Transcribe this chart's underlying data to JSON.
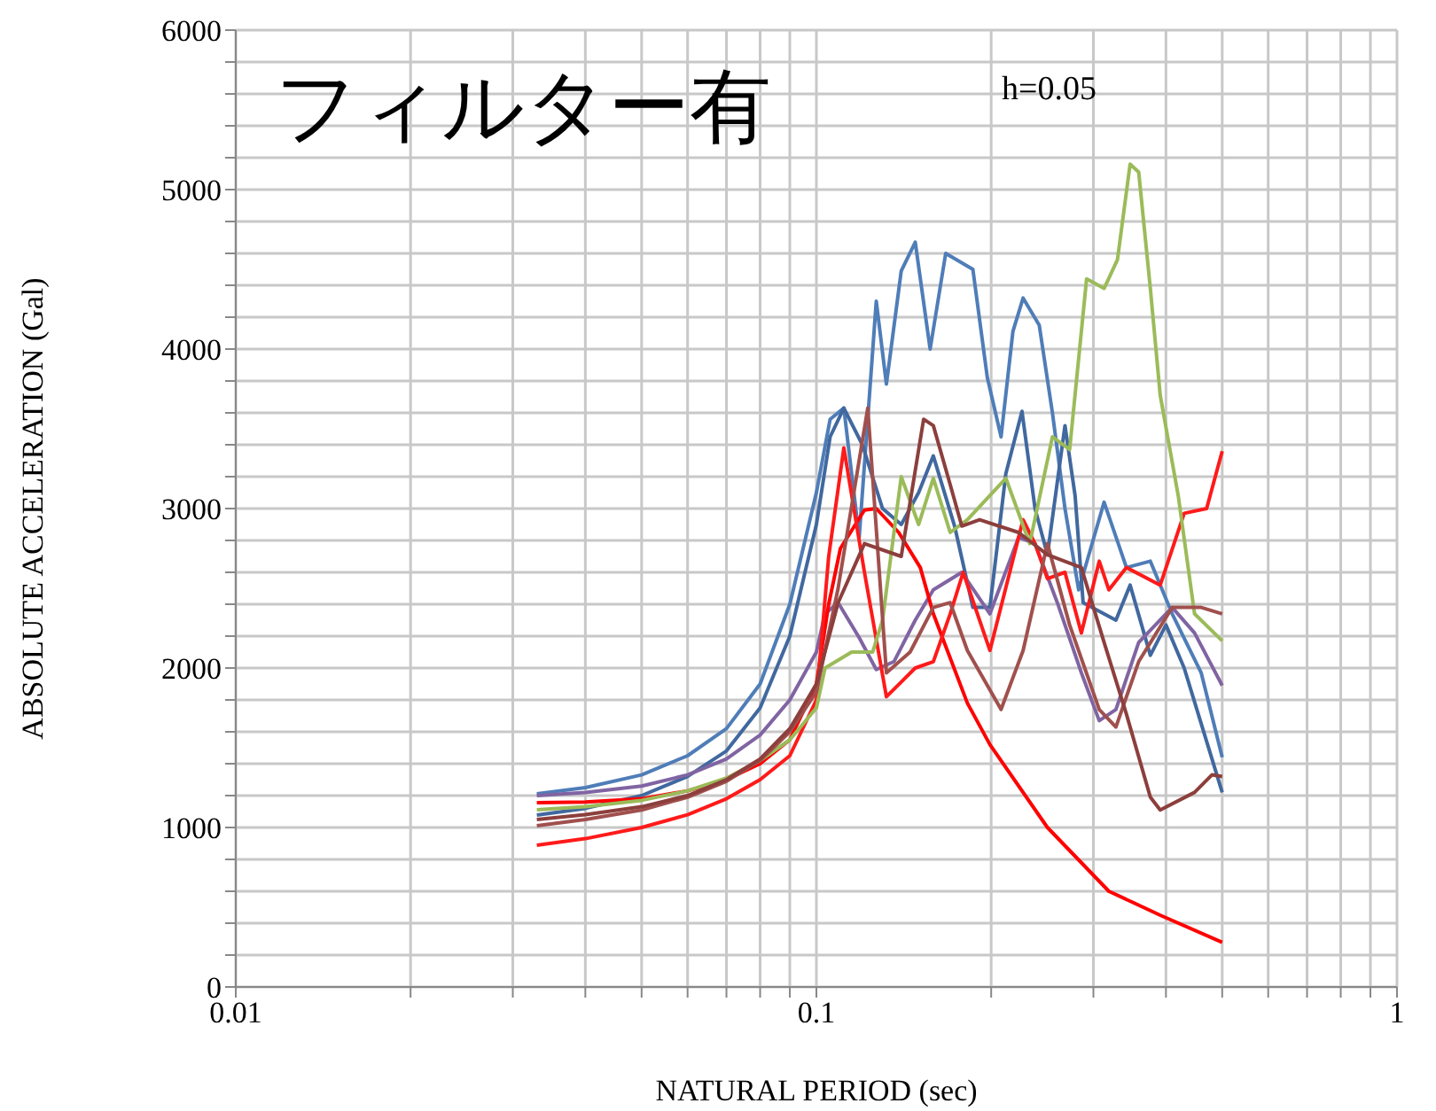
{
  "chart_data": {
    "type": "line",
    "xlabel": "NATURAL PERIOD  (sec)",
    "ylabel": "ABSOLUTE  ACCELERATION  (Gal)",
    "annotations": [
      "フィルター有",
      "h=0.05"
    ],
    "log": "x",
    "grid": true,
    "legend": false,
    "marker": "none",
    "line_style": "solid",
    "xlim": [
      0.01,
      1
    ],
    "xticks": [
      0.01,
      {
        "value": 0.02,
        "label": null
      },
      {
        "value": 0.03,
        "label": null
      },
      {
        "value": 0.04,
        "label": null
      },
      {
        "value": 0.05,
        "label": null
      },
      {
        "value": 0.06,
        "label": null
      },
      {
        "value": 0.07,
        "label": null
      },
      {
        "value": 0.08,
        "label": null
      },
      {
        "value": 0.09,
        "label": null
      },
      0.1,
      {
        "value": 0.2,
        "label": null
      },
      {
        "value": 0.3,
        "label": null
      },
      {
        "value": 0.4,
        "label": null
      },
      {
        "value": 0.5,
        "label": null
      },
      {
        "value": 0.6,
        "label": null
      },
      {
        "value": 0.7,
        "label": null
      },
      {
        "value": 0.8,
        "label": null
      },
      {
        "value": 0.9,
        "label": null
      },
      1
    ],
    "ylim": [
      0,
      6000
    ],
    "yticks": [
      0,
      {
        "value": 200,
        "label": null
      },
      {
        "value": 400,
        "label": null
      },
      {
        "value": 600,
        "label": null
      },
      {
        "value": 800,
        "label": null
      },
      1000,
      {
        "value": 1200,
        "label": null
      },
      {
        "value": 1400,
        "label": null
      },
      {
        "value": 1600,
        "label": null
      },
      {
        "value": 1800,
        "label": null
      },
      2000,
      {
        "value": 2200,
        "label": null
      },
      {
        "value": 2400,
        "label": null
      },
      {
        "value": 2600,
        "label": null
      },
      {
        "value": 2800,
        "label": null
      },
      3000,
      {
        "value": 3200,
        "label": null
      },
      {
        "value": 3400,
        "label": null
      },
      {
        "value": 3600,
        "label": null
      },
      {
        "value": 3800,
        "label": null
      },
      4000,
      {
        "value": 4200,
        "label": null
      },
      {
        "value": 4400,
        "label": null
      },
      {
        "value": 4600,
        "label": null
      },
      {
        "value": 4800,
        "label": null
      },
      5000,
      {
        "value": 5200,
        "label": null
      },
      {
        "value": 5400,
        "label": null
      },
      {
        "value": 5600,
        "label": null
      },
      {
        "value": 5800,
        "label": null
      },
      6000
    ],
    "series": [
      {
        "color": "#4f7db8",
        "x": [
          0.033,
          0.04,
          0.05,
          0.06,
          0.07,
          0.08,
          0.09,
          0.1,
          0.1056,
          0.1115,
          0.1185,
          0.1268,
          0.132,
          0.14,
          0.148,
          0.157,
          0.167,
          0.186,
          0.197,
          0.208,
          0.218,
          0.227,
          0.242,
          0.255,
          0.268,
          0.283,
          0.313,
          0.342,
          0.376,
          0.41,
          0.46,
          0.5
        ],
        "values": [
          1211,
          1250,
          1330,
          1450,
          1620,
          1900,
          2400,
          3100,
          3560,
          3630,
          2820,
          4300,
          3780,
          4490,
          4670,
          4000,
          4600,
          4500,
          3820,
          3450,
          4110,
          4320,
          4150,
          3600,
          3000,
          2490,
          3040,
          2630,
          2670,
          2340,
          1970,
          1440
        ]
      },
      {
        "color": "#41689f",
        "x": [
          0.033,
          0.04,
          0.05,
          0.06,
          0.07,
          0.08,
          0.09,
          0.1,
          0.1056,
          0.1115,
          0.12,
          0.13,
          0.14,
          0.15,
          0.159,
          0.173,
          0.186,
          0.199,
          0.212,
          0.226,
          0.238,
          0.25,
          0.268,
          0.279,
          0.288,
          0.328,
          0.347,
          0.376,
          0.4,
          0.43,
          0.5
        ],
        "values": [
          1078,
          1120,
          1200,
          1320,
          1480,
          1750,
          2200,
          2900,
          3450,
          3630,
          3400,
          3000,
          2900,
          3100,
          3330,
          2890,
          2380,
          2380,
          3220,
          3610,
          3000,
          2710,
          3520,
          3080,
          2410,
          2300,
          2520,
          2080,
          2270,
          2000,
          1220
        ]
      },
      {
        "color": "#8064a2",
        "x": [
          0.033,
          0.04,
          0.05,
          0.06,
          0.07,
          0.08,
          0.09,
          0.1,
          0.1035,
          0.109,
          0.1185,
          0.1268,
          0.136,
          0.148,
          0.159,
          0.178,
          0.199,
          0.223,
          0.238,
          0.26,
          0.286,
          0.307,
          0.328,
          0.359,
          0.41,
          0.448,
          0.5
        ],
        "values": [
          1200,
          1220,
          1260,
          1330,
          1430,
          1580,
          1800,
          2100,
          2340,
          2410,
          2190,
          1990,
          2040,
          2300,
          2490,
          2600,
          2340,
          2820,
          2780,
          2410,
          1970,
          1670,
          1740,
          2160,
          2380,
          2220,
          1890
        ]
      },
      {
        "color": "#ff0000",
        "x": [
          0.033,
          0.04,
          0.05,
          0.06,
          0.07,
          0.08,
          0.09,
          0.1,
          0.105,
          0.11,
          0.121,
          0.1268,
          0.1386,
          0.151,
          0.159,
          0.182,
          0.199,
          0.25,
          0.319,
          0.391,
          0.5
        ],
        "values": [
          1156,
          1160,
          1180,
          1230,
          1300,
          1400,
          1550,
          1900,
          2400,
          2750,
          2990,
          3000,
          2850,
          2630,
          2340,
          1780,
          1520,
          1000,
          600,
          450,
          280
        ]
      },
      {
        "color": "#ff1a1a",
        "x": [
          0.033,
          0.04,
          0.05,
          0.06,
          0.07,
          0.08,
          0.09,
          0.1,
          0.105,
          0.1115,
          0.121,
          0.132,
          0.148,
          0.159,
          0.17,
          0.179,
          0.199,
          0.227,
          0.238,
          0.25,
          0.268,
          0.286,
          0.307,
          0.319,
          0.342,
          0.391,
          0.43,
          0.47,
          0.5
        ],
        "values": [
          889,
          930,
          1000,
          1080,
          1180,
          1300,
          1450,
          1800,
          2700,
          3380,
          2600,
          1820,
          2000,
          2040,
          2340,
          2600,
          2110,
          2930,
          2780,
          2560,
          2600,
          2220,
          2670,
          2490,
          2630,
          2520,
          2970,
          3000,
          3360
        ]
      },
      {
        "color": "#9bbb59",
        "x": [
          0.033,
          0.04,
          0.05,
          0.06,
          0.07,
          0.08,
          0.09,
          0.1,
          0.1035,
          0.115,
          0.125,
          0.13,
          0.14,
          0.15,
          0.159,
          0.17,
          0.182,
          0.212,
          0.233,
          0.255,
          0.273,
          0.292,
          0.313,
          0.33,
          0.347,
          0.359,
          0.376,
          0.391,
          0.42,
          0.448,
          0.5
        ],
        "values": [
          1111,
          1130,
          1170,
          1230,
          1310,
          1420,
          1550,
          1750,
          2000,
          2100,
          2100,
          2300,
          3200,
          2900,
          3190,
          2850,
          2930,
          3190,
          2780,
          3450,
          3370,
          4440,
          4380,
          4560,
          5160,
          5110,
          4380,
          3710,
          3080,
          2340,
          2170
        ]
      },
      {
        "color": "#a0504d",
        "x": [
          0.033,
          0.04,
          0.05,
          0.06,
          0.07,
          0.08,
          0.09,
          0.1,
          0.109,
          0.1226,
          0.132,
          0.145,
          0.159,
          0.17,
          0.182,
          0.208,
          0.227,
          0.25,
          0.273,
          0.307,
          0.328,
          0.359,
          0.41,
          0.46,
          0.5
        ],
        "values": [
          1011,
          1050,
          1110,
          1190,
          1290,
          1420,
          1600,
          1850,
          2500,
          3630,
          1970,
          2100,
          2380,
          2410,
          2110,
          1740,
          2110,
          2780,
          2270,
          1740,
          1630,
          2040,
          2380,
          2380,
          2340
        ]
      },
      {
        "color": "#8c3f3c",
        "x": [
          0.033,
          0.04,
          0.05,
          0.06,
          0.07,
          0.08,
          0.09,
          0.1,
          0.109,
          0.121,
          0.14,
          0.153,
          0.159,
          0.17,
          0.178,
          0.191,
          0.223,
          0.25,
          0.286,
          0.313,
          0.342,
          0.376,
          0.391,
          0.448,
          0.48,
          0.5
        ],
        "values": [
          1050,
          1080,
          1130,
          1200,
          1300,
          1430,
          1620,
          1900,
          2410,
          2780,
          2700,
          3560,
          3520,
          3150,
          2890,
          2930,
          2850,
          2710,
          2630,
          2160,
          1710,
          1190,
          1110,
          1220,
          1330,
          1320
        ]
      }
    ]
  }
}
